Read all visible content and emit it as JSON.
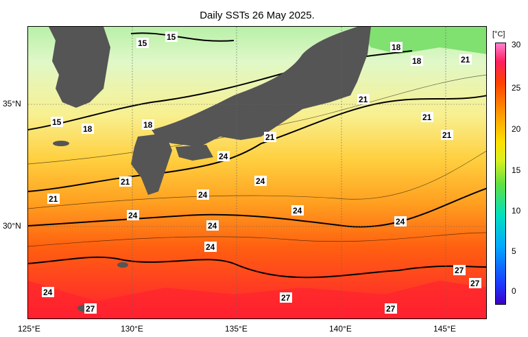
{
  "title": "Daily SSTs 26 May 2025.",
  "lat_labels": [
    {
      "text": "35°N"
    },
    {
      "text": "30°N"
    }
  ],
  "lon_labels": [
    {
      "text": "125°E"
    },
    {
      "text": "130°E"
    },
    {
      "text": "135°E"
    },
    {
      "text": "140°E"
    },
    {
      "text": "145°E"
    }
  ],
  "colorbar": {
    "unit": "[°C]",
    "ticks": [
      "30",
      "25",
      "20",
      "15",
      "10",
      "5",
      "0"
    ]
  },
  "contour_labels": [
    "15",
    "15",
    "15",
    "18",
    "18",
    "18",
    "18",
    "21",
    "21",
    "21",
    "21",
    "21",
    "21",
    "21",
    "24",
    "24",
    "24",
    "24",
    "24",
    "24",
    "24",
    "24",
    "24",
    "27",
    "27",
    "27",
    "27",
    "27"
  ],
  "colors": {
    "land": "#555555",
    "cold": "#70e070",
    "warm": "#ff3030",
    "mid": "#ffc000"
  }
}
